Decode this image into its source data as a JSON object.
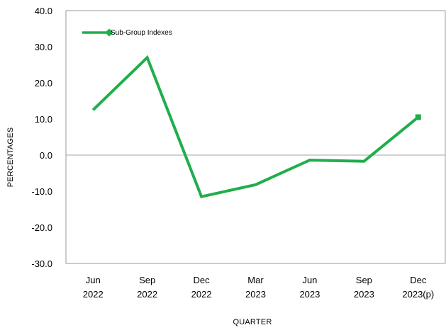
{
  "chart_data": {
    "type": "line",
    "title": "",
    "xlabel": "QUARTER",
    "ylabel": "PERCENTAGES",
    "ylim": [
      -30,
      40
    ],
    "yticks": [
      "40.0",
      "30.0",
      "20.0",
      "10.0",
      "0.0",
      "-10.0",
      "-20.0",
      "-30.0"
    ],
    "ytick_values": [
      40,
      30,
      20,
      10,
      0,
      -10,
      -20,
      -30
    ],
    "categories": [
      [
        "Jun",
        "2022"
      ],
      [
        "Sep",
        "2022"
      ],
      [
        "Dec",
        "2022"
      ],
      [
        "Mar",
        "2023"
      ],
      [
        "Jun",
        "2023"
      ],
      [
        "Sep",
        "2023"
      ],
      [
        "Dec",
        "2023(p)"
      ]
    ],
    "series": [
      {
        "name": "Sub-Group Indexes",
        "color": "#1fae4b",
        "values": [
          12.5,
          27.0,
          -11.5,
          -8.2,
          -1.4,
          -1.7,
          10.5
        ]
      }
    ],
    "grid": false,
    "zero_line": true,
    "legend_position": "top-left"
  }
}
